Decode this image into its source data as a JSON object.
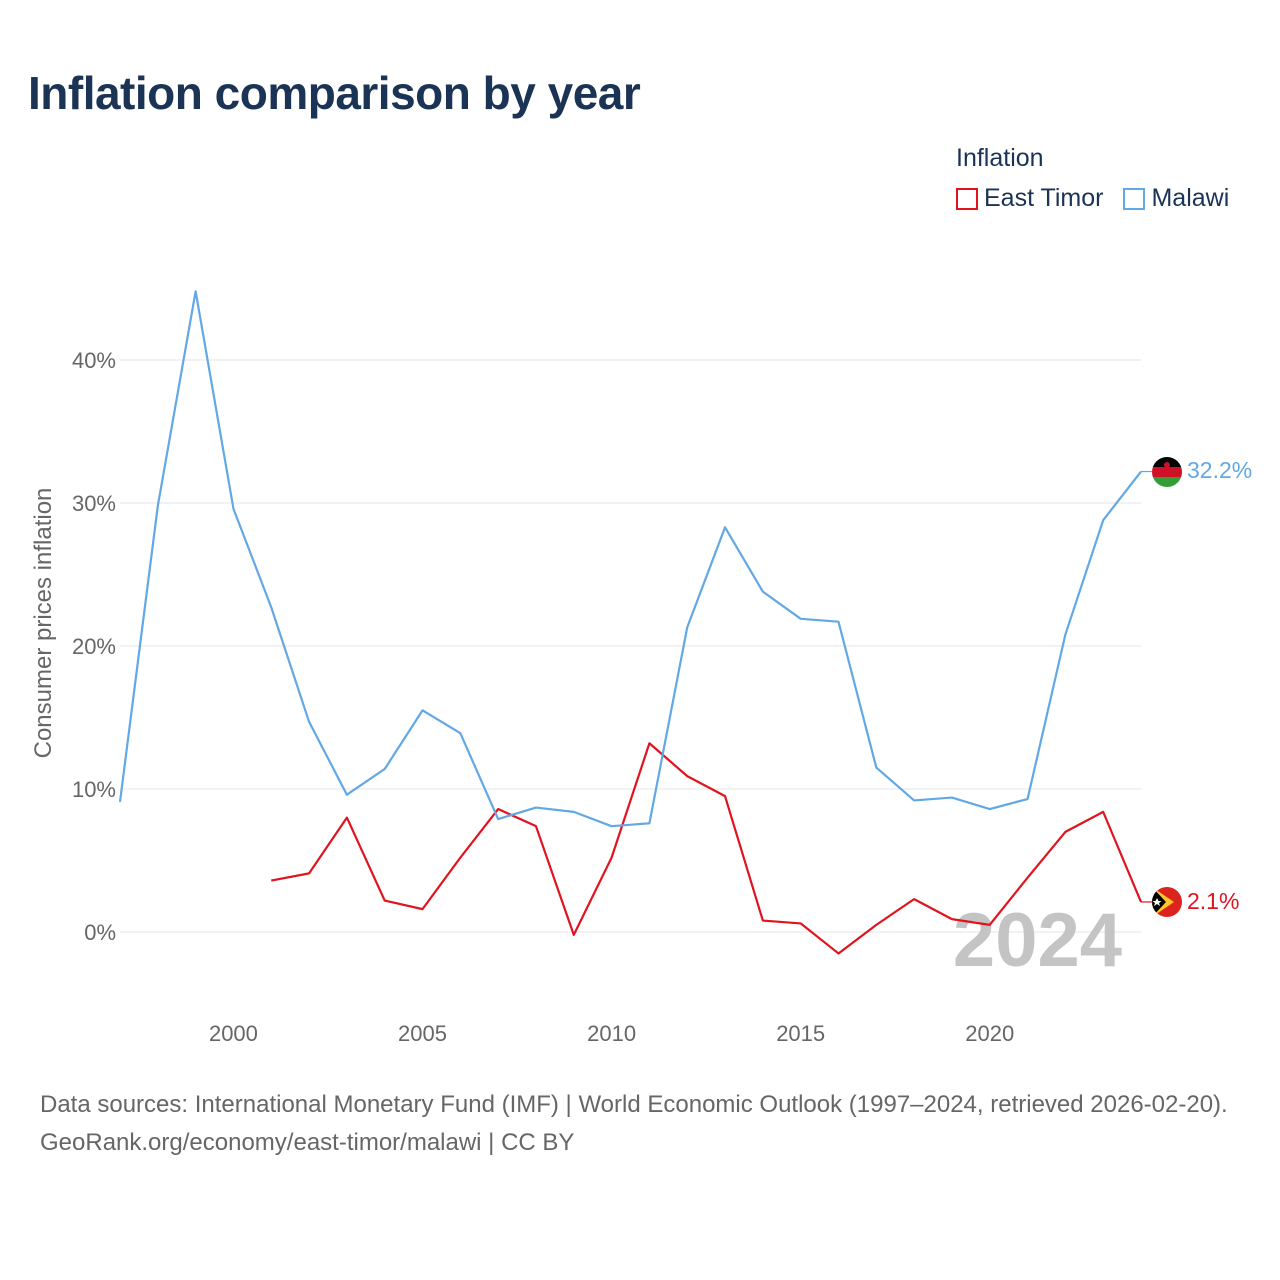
{
  "title": "Inflation comparison by year",
  "legend": {
    "title": "Inflation",
    "items": [
      {
        "label": "East Timor",
        "color": "#e0141e"
      },
      {
        "label": "Malawi",
        "color": "#62a8e5"
      }
    ]
  },
  "watermark_year": "2024",
  "footer": {
    "sources": "Data sources: International Monetary Fund (IMF) | World Economic Outlook (1997–2024, retrieved 2026-02-20).",
    "credit": "GeoRank.org/economy/east-timor/malawi | CC BY"
  },
  "chart_data": {
    "type": "line",
    "title": "Inflation comparison by year",
    "xlabel": "",
    "ylabel": "Consumer prices inflation",
    "xlim": [
      1997,
      2024
    ],
    "ylim": [
      -5,
      45
    ],
    "xticks": [
      2000,
      2005,
      2010,
      2015,
      2020
    ],
    "yticks": [
      0,
      10,
      20,
      30,
      40
    ],
    "ytick_labels": [
      "0%",
      "10%",
      "20%",
      "30%",
      "40%"
    ],
    "grid": true,
    "legend_position": "top-right",
    "series": [
      {
        "name": "East Timor",
        "color": "#e0141e",
        "end_label": "2.1%",
        "x": [
          2001,
          2002,
          2003,
          2004,
          2005,
          2006,
          2007,
          2008,
          2009,
          2010,
          2011,
          2012,
          2013,
          2014,
          2015,
          2016,
          2017,
          2018,
          2019,
          2020,
          2021,
          2022,
          2023,
          2024
        ],
        "values": [
          3.6,
          4.1,
          8.0,
          2.2,
          1.6,
          5.2,
          8.6,
          7.4,
          -0.2,
          5.2,
          13.2,
          10.9,
          9.5,
          0.8,
          0.6,
          -1.5,
          0.5,
          2.3,
          0.9,
          0.5,
          3.8,
          7.0,
          8.4,
          2.1
        ]
      },
      {
        "name": "Malawi",
        "color": "#62a8e5",
        "end_label": "32.2%",
        "x": [
          1997,
          1998,
          1999,
          2000,
          2001,
          2002,
          2003,
          2004,
          2005,
          2006,
          2007,
          2008,
          2009,
          2010,
          2011,
          2012,
          2013,
          2014,
          2015,
          2016,
          2017,
          2018,
          2019,
          2020,
          2021,
          2022,
          2023,
          2024
        ],
        "values": [
          9.1,
          29.8,
          44.8,
          29.6,
          22.7,
          14.7,
          9.6,
          11.4,
          15.5,
          13.9,
          7.9,
          8.7,
          8.4,
          7.4,
          7.6,
          21.3,
          28.3,
          23.8,
          21.9,
          21.7,
          11.5,
          9.2,
          9.4,
          8.6,
          9.3,
          20.8,
          28.8,
          32.2
        ]
      }
    ]
  }
}
